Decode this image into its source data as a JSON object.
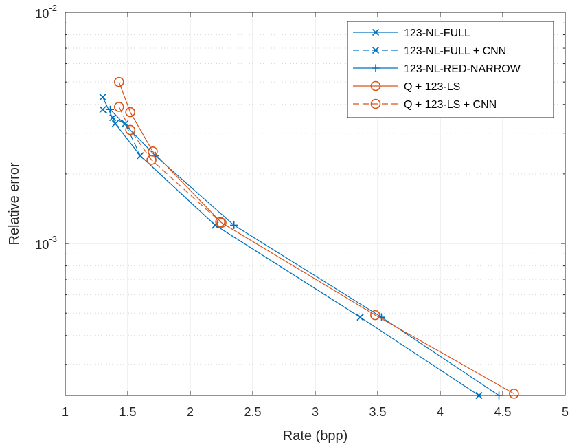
{
  "chart_data": {
    "type": "line",
    "xlabel": "Rate (bpp)",
    "ylabel": "Relative error",
    "x_scale": "linear",
    "y_scale": "log",
    "xlim": [
      1,
      5
    ],
    "ylim": [
      0.00022,
      0.01
    ],
    "x_ticks": [
      1,
      1.5,
      2,
      2.5,
      3,
      3.5,
      4,
      4.5,
      5
    ],
    "x_tick_labels": [
      "1",
      "1.5",
      "2",
      "2.5",
      "3",
      "3.5",
      "4",
      "4.5",
      "5"
    ],
    "y_ticks": [
      {
        "value": 0.01,
        "base": "10",
        "exponent": "-2"
      },
      {
        "value": 0.001,
        "base": "10",
        "exponent": "-3"
      }
    ],
    "grid": true,
    "minor_grid": true,
    "legend_position": "top-right",
    "series": [
      {
        "name": "123-NL-FULL",
        "color": "#0072BD",
        "line_style": "solid",
        "marker": "x",
        "x": [
          1.3,
          1.4,
          1.6,
          2.2,
          3.36,
          4.31
        ],
        "y": [
          0.0043,
          0.0033,
          0.0024,
          0.0012,
          0.00048,
          0.00022
        ]
      },
      {
        "name": "123-NL-FULL + CNN",
        "color": "#0072BD",
        "line_style": "dashed",
        "marker": "x",
        "x": [
          1.3,
          1.38,
          1.48,
          1.6,
          2.2,
          3.36
        ],
        "y": [
          0.0038,
          0.0035,
          0.0033,
          0.0024,
          0.0012,
          0.00048
        ]
      },
      {
        "name": "123-NL-RED-NARROW",
        "color": "#0072BD",
        "line_style": "solid",
        "marker": "+",
        "x": [
          1.36,
          1.72,
          2.35,
          3.53,
          4.47
        ],
        "y": [
          0.0038,
          0.0024,
          0.0012,
          0.00048,
          0.00022
        ]
      },
      {
        "name": "Q + 123-LS",
        "color": "#D95319",
        "line_style": "solid",
        "marker": "o",
        "x": [
          1.43,
          1.52,
          1.7,
          2.25,
          3.48,
          4.59
        ],
        "y": [
          0.005,
          0.0037,
          0.0025,
          0.00123,
          0.00049,
          0.000224
        ]
      },
      {
        "name": "Q + 123-LS + CNN",
        "color": "#D95319",
        "line_style": "dashed",
        "marker": "o",
        "x": [
          1.43,
          1.52,
          1.69,
          2.24
        ],
        "y": [
          0.0039,
          0.0031,
          0.0023,
          0.00124
        ]
      }
    ]
  }
}
